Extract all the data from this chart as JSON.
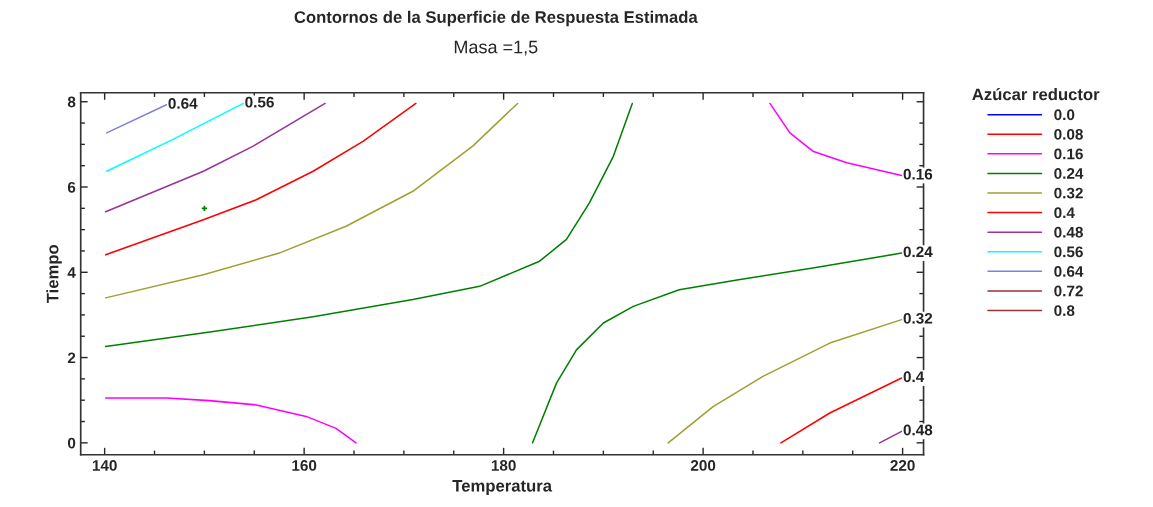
{
  "chart_data": {
    "type": "line",
    "title": "Contornos de la Superficie de Respuesta Estimada",
    "subtitle": "Masa =1,5",
    "xlabel": "Temperatura",
    "ylabel": "Tiempo",
    "legend_title": "Azúcar reductor",
    "xlim": [
      137.6,
      222.1
    ],
    "ylim": [
      -0.28,
      8.21
    ],
    "xticks": [
      140,
      {
        "value": 145,
        "label": null
      },
      160,
      {
        "value": 150,
        "label": null
      },
      {
        "value": 155,
        "label": null
      },
      {
        "value": 165,
        "label": null
      },
      {
        "value": 170,
        "label": null
      },
      {
        "value": 175,
        "label": null
      },
      180,
      {
        "value": 185,
        "label": null
      },
      {
        "value": 190,
        "label": null
      },
      {
        "value": 195,
        "label": null
      },
      200,
      {
        "value": 205,
        "label": null
      },
      {
        "value": 210,
        "label": null
      },
      {
        "value": 215,
        "label": null
      },
      220
    ],
    "yticks": [
      0,
      {
        "value": 0.5,
        "label": null
      },
      {
        "value": 1,
        "label": null
      },
      {
        "value": 1.5,
        "label": null
      },
      2,
      {
        "value": 2.5,
        "label": null
      },
      {
        "value": 3,
        "label": null
      },
      {
        "value": 3.5,
        "label": null
      },
      4,
      {
        "value": 4.5,
        "label": null
      },
      {
        "value": 5,
        "label": null
      },
      {
        "value": 5.5,
        "label": null
      },
      6,
      {
        "value": 6.5,
        "label": null
      },
      {
        "value": 7,
        "label": null
      },
      {
        "value": 7.5,
        "label": null
      },
      8
    ],
    "grid": false,
    "legend": "right",
    "line_style": "solid",
    "series": [
      {
        "name": "0.0",
        "color": "#0000ff"
      },
      {
        "name": "0.08",
        "color": "#ff0000"
      },
      {
        "name": "0.16",
        "color": "#ff00ff",
        "x": [
          140.1,
          146.2,
          150.5,
          155.2,
          160.2,
          163.2,
          165.2,
          null,
          206.7,
          208.7,
          211.0,
          214.4,
          219.9
        ],
        "values": [
          1.05,
          1.05,
          0.99,
          0.89,
          0.62,
          0.34,
          0.0,
          null,
          7.96,
          7.27,
          6.84,
          6.57,
          6.27
        ]
      },
      {
        "name": "0.24",
        "color": "#008000",
        "x": [
          140.1,
          150.9,
          160.9,
          170.9,
          177.6,
          183.6,
          186.3,
          188.6,
          191.0,
          192.9,
          null,
          182.9,
          185.3,
          187.3,
          190.0,
          193.0,
          197.6,
          203.7,
          211.0,
          219.9
        ],
        "values": [
          2.26,
          2.61,
          2.96,
          3.36,
          3.67,
          4.26,
          4.77,
          5.63,
          6.72,
          7.96,
          null,
          0.0,
          1.4,
          2.18,
          2.81,
          3.2,
          3.59,
          3.83,
          4.1,
          4.45
        ]
      },
      {
        "name": "0.32",
        "color": "#a0a030",
        "x": [
          140.1,
          149.9,
          157.5,
          164.2,
          170.9,
          176.9,
          181.4,
          null,
          196.5,
          201.0,
          206.0,
          212.7,
          219.9
        ],
        "values": [
          3.4,
          3.94,
          4.45,
          5.08,
          5.9,
          6.96,
          7.96,
          null,
          0.0,
          0.85,
          1.56,
          2.34,
          2.89
        ]
      },
      {
        "name": "0.4",
        "color": "#ff0000",
        "x": [
          140.1,
          149.9,
          155.2,
          160.9,
          165.9,
          171.2,
          null,
          207.8,
          212.7,
          219.9
        ],
        "values": [
          4.41,
          5.23,
          5.7,
          6.37,
          7.07,
          7.96,
          null,
          0.0,
          0.7,
          1.52
        ]
      },
      {
        "name": "0.48",
        "color": "#993399",
        "x": [
          140.1,
          149.9,
          154.9,
          162.1,
          null,
          217.7,
          219.9
        ],
        "values": [
          5.42,
          6.37,
          6.96,
          7.96,
          null,
          0.0,
          0.27
        ]
      },
      {
        "name": "0.56",
        "color": "#00ffff",
        "x": [
          140.2,
          146.8,
          153.9
        ],
        "values": [
          6.37,
          7.11,
          7.96
        ]
      },
      {
        "name": "0.64",
        "color": "#8080e0",
        "x": [
          140.2,
          146.2
        ],
        "values": [
          7.27,
          7.93
        ]
      },
      {
        "name": "0.72",
        "color": "#993333"
      },
      {
        "name": "0.8",
        "color": "#993333"
      },
      {
        "type": "scatter",
        "marker": "cross",
        "color": "#008000",
        "x": [
          150
        ],
        "values": [
          5.5
        ]
      }
    ],
    "annotations": [
      {
        "text": "0.64",
        "x": 146.2,
        "y": 7.93
      },
      {
        "text": "0.56",
        "x": 153.9,
        "y": 7.96
      },
      {
        "text": "0.16",
        "x": 219.9,
        "y": 6.27
      },
      {
        "text": "0.24",
        "x": 219.9,
        "y": 4.45
      },
      {
        "text": "0.32",
        "x": 219.9,
        "y": 2.89
      },
      {
        "text": "0.4",
        "x": 219.9,
        "y": 1.52
      },
      {
        "text": "0.48",
        "x": 219.9,
        "y": 0.27
      }
    ]
  }
}
